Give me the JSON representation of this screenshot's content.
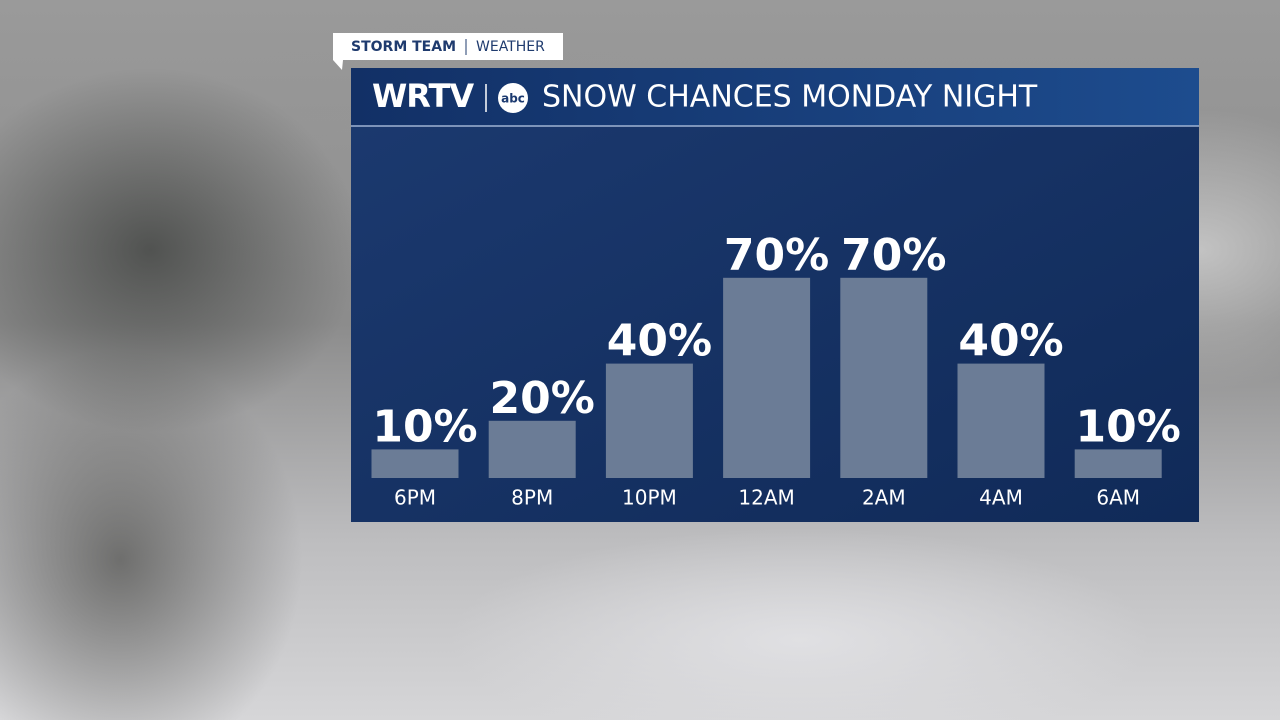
{
  "brand": {
    "tag": "STORM TEAM",
    "section": "WEATHER",
    "station": "WRTV",
    "network": "abc"
  },
  "chart_data": {
    "type": "bar",
    "title": "SNOW CHANCES MONDAY NIGHT",
    "categories": [
      "6PM",
      "8PM",
      "10PM",
      "12AM",
      "2AM",
      "4AM",
      "6AM"
    ],
    "values": [
      10,
      20,
      40,
      70,
      70,
      40,
      10
    ],
    "value_labels": [
      "10%",
      "20%",
      "40%",
      "70%",
      "70%",
      "40%",
      "10%"
    ],
    "color": "#6b7c96"
  }
}
